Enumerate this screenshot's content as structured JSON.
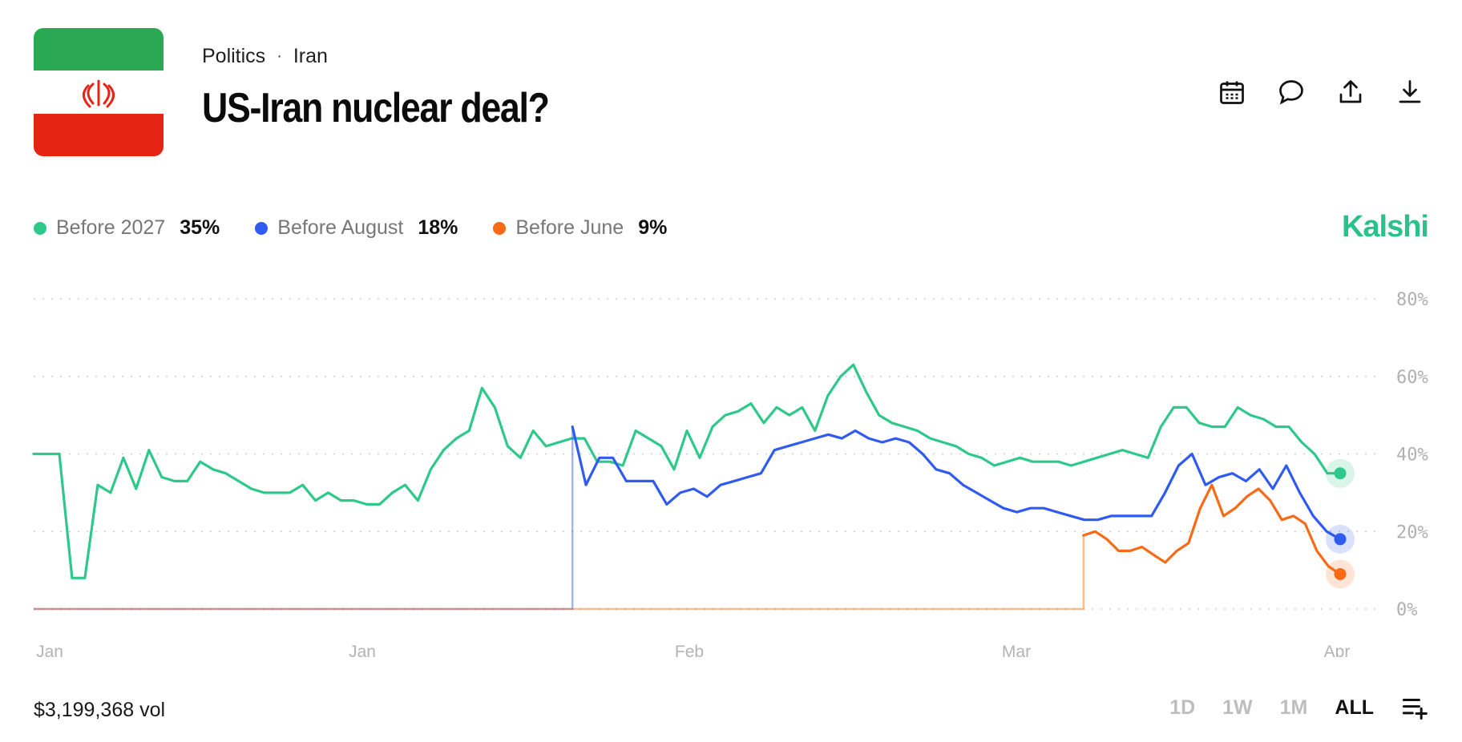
{
  "header": {
    "breadcrumb": [
      "Politics",
      "Iran"
    ],
    "title": "US-Iran nuclear deal?",
    "actions": [
      "calendar-icon",
      "comment-icon",
      "share-icon",
      "download-icon"
    ]
  },
  "brand": {
    "name": "Kalshi",
    "color": "#28c28a"
  },
  "legend": [
    {
      "name": "Before 2027",
      "value": "35%",
      "color": "#2ec98a"
    },
    {
      "name": "Before August",
      "value": "18%",
      "color": "#2f5bf0"
    },
    {
      "name": "Before June",
      "value": "9%",
      "color": "#f86a16"
    }
  ],
  "chart_data": {
    "type": "line",
    "x_ticks": [
      "Jan",
      "Jan",
      "Feb",
      "Mar",
      "Apr"
    ],
    "y_ticks": [
      "80%",
      "60%",
      "40%",
      "20%",
      "0%"
    ],
    "ylim": [
      0,
      80
    ],
    "grid": true,
    "legend_position": "top-left",
    "series": [
      {
        "name": "Before 2027",
        "color": "#2ec98a",
        "values": [
          40,
          40,
          40,
          8,
          8,
          32,
          30,
          39,
          31,
          41,
          34,
          33,
          33,
          38,
          36,
          35,
          33,
          31,
          30,
          30,
          30,
          32,
          28,
          30,
          28,
          28,
          27,
          27,
          30,
          32,
          28,
          36,
          41,
          44,
          46,
          57,
          52,
          42,
          39,
          46,
          42,
          43,
          44,
          44,
          38,
          38,
          37,
          46,
          44,
          42,
          36,
          46,
          39,
          47,
          50,
          51,
          53,
          48,
          52,
          50,
          52,
          46,
          55,
          60,
          63,
          56,
          50,
          48,
          47,
          46,
          44,
          43,
          42,
          40,
          39,
          37,
          38,
          39,
          38,
          38,
          38,
          37,
          38,
          39,
          40,
          41,
          40,
          39,
          47,
          52,
          52,
          48,
          47,
          47,
          52,
          50,
          49,
          47,
          47,
          43,
          40,
          35,
          35
        ]
      },
      {
        "name": "Before August",
        "color": "#2f5bf0",
        "values": [
          0,
          0,
          0,
          0,
          0,
          0,
          0,
          0,
          0,
          0,
          0,
          0,
          0,
          0,
          0,
          0,
          0,
          0,
          0,
          0,
          0,
          0,
          0,
          0,
          0,
          0,
          0,
          0,
          0,
          0,
          0,
          0,
          0,
          0,
          0,
          0,
          0,
          0,
          0,
          0,
          47,
          32,
          39,
          39,
          33,
          33,
          33,
          27,
          30,
          31,
          29,
          32,
          33,
          34,
          35,
          41,
          42,
          43,
          44,
          45,
          44,
          46,
          44,
          43,
          44,
          43,
          40,
          36,
          35,
          32,
          30,
          28,
          26,
          25,
          26,
          26,
          25,
          24,
          23,
          23,
          24,
          24,
          24,
          24,
          30,
          37,
          40,
          32,
          34,
          35,
          33,
          36,
          31,
          37,
          30,
          24,
          20,
          18
        ]
      },
      {
        "name": "Before June",
        "color": "#f86a16",
        "values": [
          0,
          0,
          0,
          0,
          0,
          0,
          0,
          0,
          0,
          0,
          0,
          0,
          0,
          0,
          0,
          0,
          0,
          0,
          0,
          0,
          0,
          0,
          0,
          0,
          0,
          0,
          0,
          0,
          0,
          0,
          0,
          0,
          0,
          0,
          0,
          0,
          0,
          0,
          0,
          0,
          0,
          0,
          0,
          0,
          0,
          0,
          0,
          0,
          0,
          0,
          0,
          0,
          0,
          0,
          0,
          0,
          0,
          0,
          0,
          0,
          0,
          0,
          0,
          0,
          0,
          0,
          0,
          0,
          0,
          0,
          0,
          0,
          0,
          0,
          0,
          0,
          0,
          0,
          0,
          0,
          0,
          0,
          0,
          0,
          0,
          0,
          0,
          0,
          0,
          0,
          19,
          20,
          18,
          15,
          15,
          16,
          14,
          12,
          15,
          17,
          26,
          32,
          24,
          26,
          29,
          31,
          28,
          23,
          24,
          22,
          15,
          11,
          9
        ]
      }
    ]
  },
  "footer": {
    "volume": "$3,199,368 vol",
    "ranges": [
      "1D",
      "1W",
      "1M",
      "ALL"
    ],
    "active_range": "ALL"
  }
}
